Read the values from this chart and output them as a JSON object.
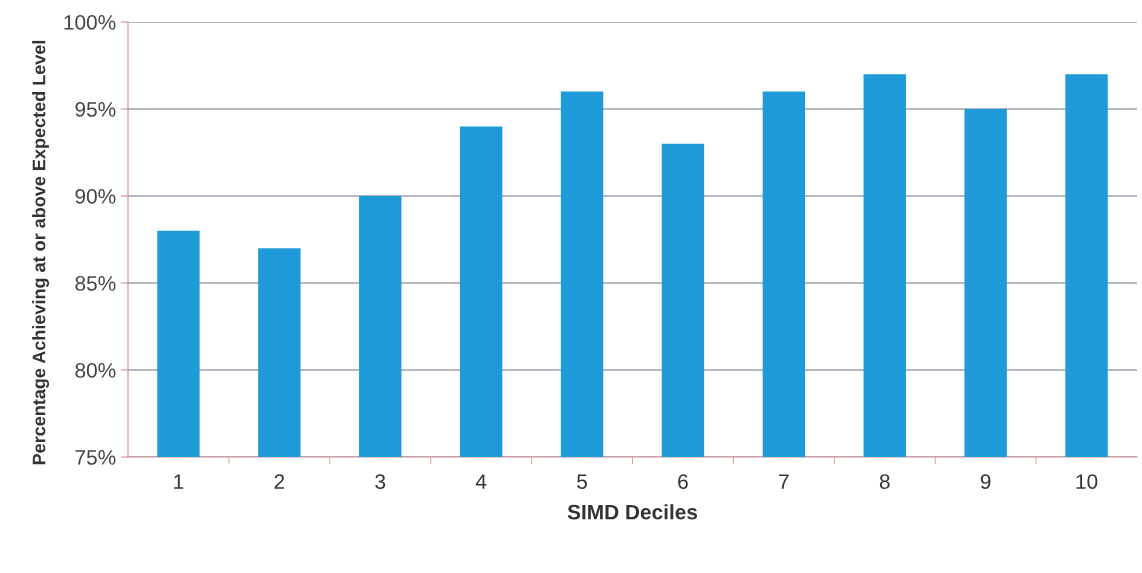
{
  "chart_data": {
    "type": "bar",
    "xlabel": "SIMD Deciles",
    "ylabel": "Percentage Achieving at or above Expected Level",
    "categories": [
      "1",
      "2",
      "3",
      "4",
      "5",
      "6",
      "7",
      "8",
      "9",
      "10"
    ],
    "values": [
      88,
      87,
      90,
      94,
      96,
      93,
      96,
      97,
      95,
      97
    ],
    "color": "#1e9ad8",
    "ylim": [
      75,
      100
    ],
    "yticks": [
      {
        "value": 75,
        "label": "75%"
      },
      {
        "value": 80,
        "label": "80%"
      },
      {
        "value": 85,
        "label": "85%"
      },
      {
        "value": 90,
        "label": "90%"
      },
      {
        "value": 95,
        "label": "95%"
      },
      {
        "value": 100,
        "label": "100%"
      }
    ],
    "grid": "y",
    "legend": false
  }
}
